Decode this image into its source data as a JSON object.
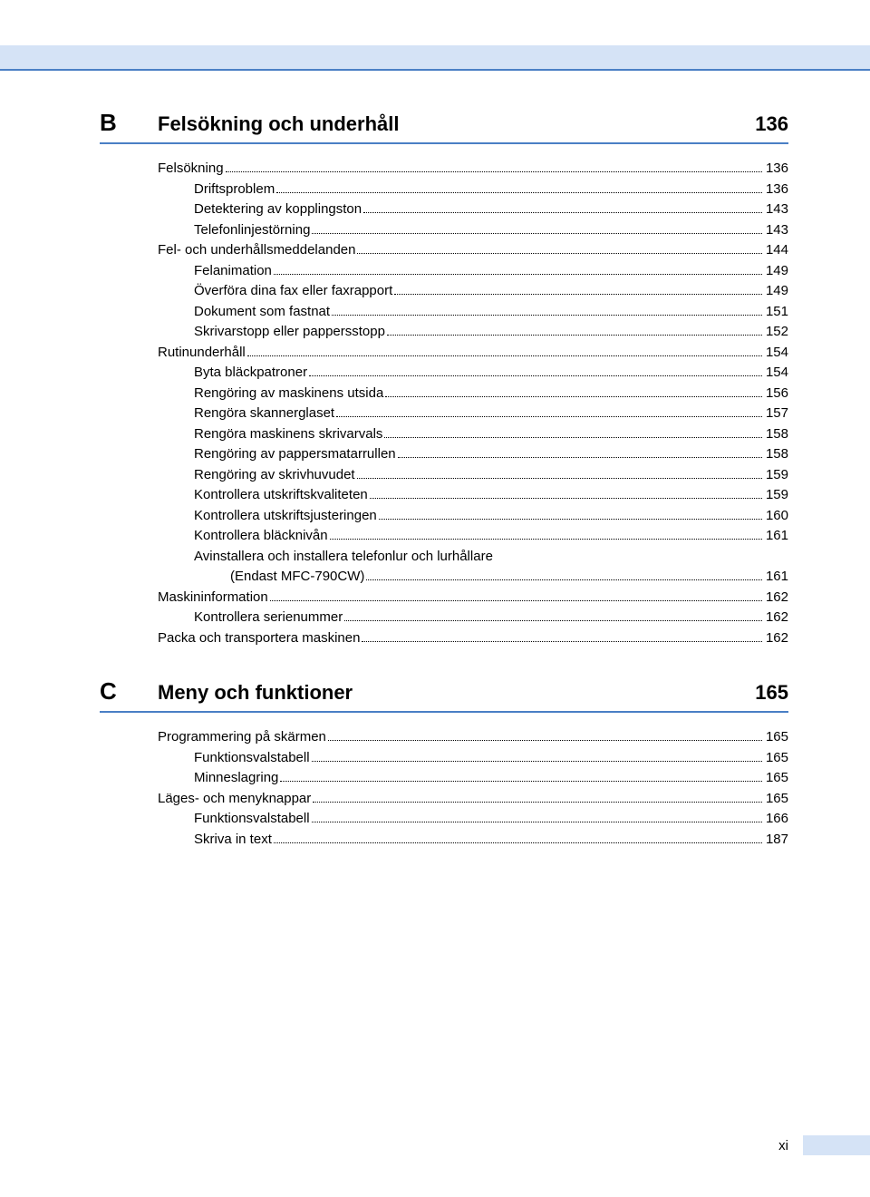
{
  "colors": {
    "header_bg": "#d5e3f6",
    "header_line": "#4a7fc5",
    "text": "#000000",
    "page_bg": "#ffffff"
  },
  "typography": {
    "section_letter_fontsize": 26,
    "section_title_fontsize": 22,
    "toc_fontsize": 15
  },
  "sections": [
    {
      "letter": "B",
      "title": "Felsökning och underhåll",
      "page": "136",
      "entries": [
        {
          "level": 1,
          "label": "Felsökning",
          "page": "136"
        },
        {
          "level": 2,
          "label": "Driftsproblem",
          "page": "136"
        },
        {
          "level": 2,
          "label": "Detektering av kopplingston",
          "page": "143"
        },
        {
          "level": 2,
          "label": "Telefonlinjestörning",
          "page": "143"
        },
        {
          "level": 1,
          "label": "Fel- och underhållsmeddelanden",
          "page": "144"
        },
        {
          "level": 2,
          "label": "Felanimation",
          "page": "149"
        },
        {
          "level": 2,
          "label": "Överföra dina fax eller faxrapport",
          "page": "149"
        },
        {
          "level": 2,
          "label": "Dokument som fastnat",
          "page": "151"
        },
        {
          "level": 2,
          "label": "Skrivarstopp eller pappersstopp",
          "page": "152"
        },
        {
          "level": 1,
          "label": "Rutinunderhåll",
          "page": "154"
        },
        {
          "level": 2,
          "label": "Byta bläckpatroner",
          "page": "154"
        },
        {
          "level": 2,
          "label": "Rengöring av maskinens utsida",
          "page": "156"
        },
        {
          "level": 2,
          "label": "Rengöra skannerglaset",
          "page": "157"
        },
        {
          "level": 2,
          "label": "Rengöra maskinens skrivarvals",
          "page": "158"
        },
        {
          "level": 2,
          "label": "Rengöring av pappersmatarrullen",
          "page": "158"
        },
        {
          "level": 2,
          "label": "Rengöring av skrivhuvudet",
          "page": "159"
        },
        {
          "level": 2,
          "label": "Kontrollera utskriftskvaliteten",
          "page": "159"
        },
        {
          "level": 2,
          "label": "Kontrollera utskriftsjusteringen",
          "page": "160"
        },
        {
          "level": 2,
          "label": "Kontrollera bläcknivån",
          "page": "161"
        },
        {
          "level": 2,
          "label": "Avinstallera och installera telefonlur och lurhållare",
          "cont": "(Endast MFC-790CW)",
          "page": "161"
        },
        {
          "level": 1,
          "label": "Maskininformation",
          "page": "162"
        },
        {
          "level": 2,
          "label": "Kontrollera serienummer",
          "page": "162"
        },
        {
          "level": 1,
          "label": "Packa och transportera maskinen",
          "page": "162"
        }
      ]
    },
    {
      "letter": "C",
      "title": "Meny och funktioner",
      "page": "165",
      "entries": [
        {
          "level": 1,
          "label": "Programmering på skärmen",
          "page": "165"
        },
        {
          "level": 2,
          "label": "Funktionsvalstabell",
          "page": "165"
        },
        {
          "level": 2,
          "label": "Minneslagring",
          "page": "165"
        },
        {
          "level": 1,
          "label": "Läges- och menyknappar",
          "page": "165"
        },
        {
          "level": 2,
          "label": "Funktionsvalstabell",
          "page": "166"
        },
        {
          "level": 2,
          "label": "Skriva in text",
          "page": "187"
        }
      ]
    }
  ],
  "footer_page": "xi"
}
